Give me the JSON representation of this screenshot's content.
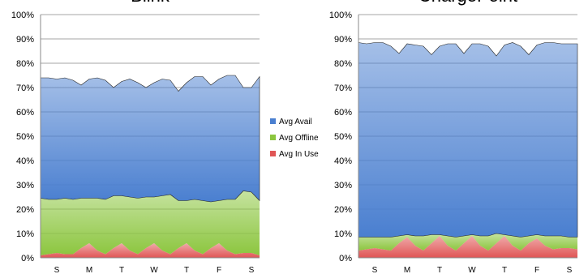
{
  "chart_data": [
    {
      "type": "area",
      "title": "Blink",
      "categories": [
        null,
        null,
        "S",
        null,
        null,
        null,
        "M",
        null,
        null,
        null,
        "T",
        null,
        null,
        null,
        "W",
        null,
        null,
        null,
        "T",
        null,
        null,
        null,
        "F",
        null,
        null,
        null,
        "S",
        null
      ],
      "series": [
        {
          "name": "Avg In Use",
          "color": "#e05555",
          "values": [
            1,
            1.5,
            2,
            1.5,
            1.5,
            4,
            6,
            3,
            1.5,
            4,
            6,
            3,
            1.5,
            4,
            6,
            3,
            1.5,
            4,
            6,
            3,
            1.5,
            4,
            6,
            3,
            1.5,
            2,
            2,
            1
          ]
        },
        {
          "name": "Avg Offline",
          "color": "#8cc63f",
          "values": [
            23.5,
            22.5,
            22,
            23,
            22.5,
            20.5,
            18.5,
            21.5,
            22.5,
            21.5,
            19.5,
            22,
            23,
            21,
            19,
            22.5,
            24.5,
            19.5,
            17.5,
            21,
            22,
            19,
            17.5,
            21,
            22.5,
            25.5,
            25,
            22.5
          ]
        },
        {
          "name": "Avg Avail",
          "color": "#4a7fd0",
          "values": [
            49.5,
            50,
            49.5,
            49.5,
            49,
            46.5,
            49,
            49.5,
            49,
            44.5,
            47,
            48.5,
            47.5,
            45,
            47,
            48,
            47,
            45,
            48.5,
            50.5,
            51,
            48,
            50,
            51,
            51,
            42.5,
            43,
            51
          ]
        }
      ],
      "ylim": [
        0,
        100
      ],
      "yticks": [
        {
          "value": 0,
          "label": "0%"
        },
        {
          "value": 10,
          "label": "10%"
        },
        {
          "value": 20,
          "label": "20%"
        },
        {
          "value": 30,
          "label": "30%"
        },
        {
          "value": 40,
          "label": "40%"
        },
        {
          "value": 50,
          "label": "50%"
        },
        {
          "value": 60,
          "label": "60%"
        },
        {
          "value": 70,
          "label": "70%"
        },
        {
          "value": 80,
          "label": "80%"
        },
        {
          "value": 90,
          "label": "90%"
        },
        {
          "value": 100,
          "label": "100%"
        }
      ],
      "grid": true,
      "stacked": true
    },
    {
      "type": "area",
      "title": "ChargePoint",
      "categories": [
        null,
        null,
        "S",
        null,
        null,
        null,
        "M",
        null,
        null,
        null,
        "T",
        null,
        null,
        null,
        "W",
        null,
        null,
        null,
        "T",
        null,
        null,
        null,
        "F",
        null,
        null,
        null,
        "S",
        null
      ],
      "series": [
        {
          "color": "#e05555",
          "values": [
            3,
            3.5,
            4,
            3.5,
            3,
            6,
            8.5,
            5,
            3,
            6,
            9,
            5,
            3,
            6,
            9,
            5,
            3,
            6,
            9,
            5,
            3,
            6,
            8,
            5,
            3.5,
            4,
            4,
            3.5
          ]
        },
        {
          "color": "#8cc63f",
          "values": [
            5.5,
            5,
            4.5,
            5,
            5.5,
            3,
            1,
            4,
            6,
            3.5,
            0.5,
            4,
            5.5,
            3,
            0.5,
            4,
            6,
            4,
            0.5,
            4,
            5.5,
            3,
            1.5,
            4,
            5.5,
            5,
            4.5,
            5
          ]
        },
        {
          "color": "#4a7fd0",
          "values": [
            80,
            79.5,
            80,
            80,
            78.5,
            75,
            78.5,
            78.5,
            78,
            74,
            77.5,
            79,
            79.5,
            75,
            78.5,
            79,
            78,
            73,
            78,
            79.5,
            78.5,
            74.5,
            78,
            79.5,
            79.5,
            79,
            79.5,
            79.5
          ]
        }
      ],
      "ylim": [
        0,
        100
      ],
      "yticks": [
        {
          "value": 0,
          "label": "0%"
        },
        {
          "value": 10,
          "label": "10%"
        },
        {
          "value": 20,
          "label": "20%"
        },
        {
          "value": 30,
          "label": "30%"
        },
        {
          "value": 40,
          "label": "40%"
        },
        {
          "value": 50,
          "label": "50%"
        },
        {
          "value": 60,
          "label": "60%"
        },
        {
          "value": 70,
          "label": "70%"
        },
        {
          "value": 80,
          "label": "80%"
        },
        {
          "value": 90,
          "label": "90%"
        },
        {
          "value": 100,
          "label": "100%"
        }
      ],
      "grid": true,
      "stacked": true
    }
  ]
}
